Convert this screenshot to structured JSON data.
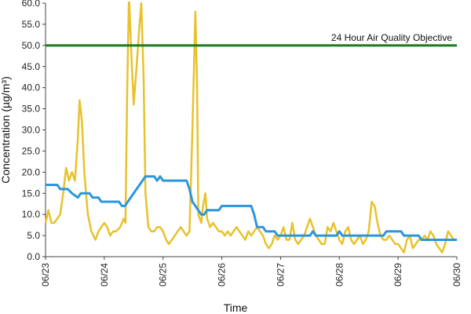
{
  "chart_data": {
    "type": "line",
    "xlabel": "Time",
    "ylabel": "Concentration (µg/m³)",
    "ylim": [
      0,
      60
    ],
    "yticks": [
      "0.0",
      "5.0",
      "10.0",
      "15.0",
      "20.0",
      "25.0",
      "30.0",
      "35.0",
      "40.0",
      "45.0",
      "50.0",
      "55.0",
      "60.0"
    ],
    "x_tick_labels": [
      "06/23",
      "06/24",
      "06/25",
      "06/26",
      "06/27",
      "06/28",
      "06/29",
      "06/30"
    ],
    "grid": false,
    "colors": {
      "hourly": "#e8c22a",
      "rolling": "#2c96dc",
      "objective": "#1f7a1f"
    },
    "objective": {
      "value": 50,
      "label": "24 Hour Air Quality Objective"
    },
    "series": [
      {
        "values": [
          [
            0,
            8
          ],
          [
            0.05,
            11
          ],
          [
            0.1,
            8
          ],
          [
            0.15,
            8
          ],
          [
            0.25,
            10
          ],
          [
            0.3,
            15
          ],
          [
            0.35,
            21
          ],
          [
            0.4,
            18
          ],
          [
            0.45,
            20
          ],
          [
            0.5,
            18
          ],
          [
            0.55,
            28
          ],
          [
            0.58,
            37
          ],
          [
            0.62,
            32
          ],
          [
            0.66,
            20
          ],
          [
            0.72,
            10
          ],
          [
            0.78,
            6
          ],
          [
            0.85,
            4
          ],
          [
            0.9,
            6
          ],
          [
            0.95,
            7
          ],
          [
            1.0,
            8
          ],
          [
            1.05,
            7
          ],
          [
            1.1,
            5
          ],
          [
            1.15,
            6
          ],
          [
            1.2,
            6
          ],
          [
            1.27,
            7
          ],
          [
            1.33,
            9
          ],
          [
            1.36,
            8
          ],
          [
            1.39,
            40
          ],
          [
            1.42,
            62
          ],
          [
            1.46,
            48
          ],
          [
            1.5,
            36
          ],
          [
            1.55,
            45
          ],
          [
            1.6,
            55
          ],
          [
            1.63,
            60
          ],
          [
            1.67,
            42
          ],
          [
            1.7,
            15
          ],
          [
            1.75,
            7
          ],
          [
            1.8,
            6
          ],
          [
            1.85,
            6
          ],
          [
            1.9,
            7
          ],
          [
            1.95,
            7
          ],
          [
            2.0,
            6
          ],
          [
            2.05,
            4
          ],
          [
            2.1,
            3
          ],
          [
            2.15,
            4
          ],
          [
            2.2,
            5
          ],
          [
            2.25,
            6
          ],
          [
            2.3,
            7
          ],
          [
            2.35,
            6
          ],
          [
            2.4,
            5
          ],
          [
            2.45,
            6
          ],
          [
            2.5,
            30
          ],
          [
            2.55,
            58
          ],
          [
            2.58,
            40
          ],
          [
            2.6,
            10
          ],
          [
            2.65,
            8
          ],
          [
            2.68,
            12
          ],
          [
            2.72,
            15
          ],
          [
            2.75,
            9
          ],
          [
            2.8,
            7
          ],
          [
            2.85,
            8
          ],
          [
            2.9,
            7
          ],
          [
            2.95,
            6
          ],
          [
            3.0,
            6
          ],
          [
            3.05,
            5
          ],
          [
            3.1,
            6
          ],
          [
            3.15,
            5
          ],
          [
            3.2,
            6
          ],
          [
            3.25,
            7
          ],
          [
            3.3,
            6
          ],
          [
            3.35,
            5
          ],
          [
            3.4,
            4
          ],
          [
            3.45,
            6
          ],
          [
            3.5,
            5
          ],
          [
            3.55,
            6
          ],
          [
            3.6,
            7
          ],
          [
            3.65,
            6
          ],
          [
            3.7,
            5
          ],
          [
            3.75,
            3
          ],
          [
            3.8,
            2
          ],
          [
            3.85,
            3
          ],
          [
            3.9,
            5
          ],
          [
            3.95,
            4
          ],
          [
            4.0,
            5
          ],
          [
            4.05,
            7
          ],
          [
            4.1,
            4
          ],
          [
            4.15,
            4
          ],
          [
            4.2,
            8
          ],
          [
            4.25,
            4
          ],
          [
            4.3,
            3
          ],
          [
            4.35,
            4
          ],
          [
            4.4,
            5
          ],
          [
            4.45,
            7
          ],
          [
            4.5,
            9
          ],
          [
            4.55,
            7
          ],
          [
            4.6,
            5
          ],
          [
            4.65,
            4
          ],
          [
            4.7,
            3
          ],
          [
            4.75,
            3
          ],
          [
            4.8,
            7
          ],
          [
            4.85,
            6
          ],
          [
            4.9,
            8
          ],
          [
            4.95,
            6
          ],
          [
            5.0,
            4
          ],
          [
            5.05,
            3
          ],
          [
            5.1,
            6
          ],
          [
            5.15,
            7
          ],
          [
            5.2,
            4
          ],
          [
            5.25,
            3
          ],
          [
            5.3,
            4
          ],
          [
            5.35,
            5
          ],
          [
            5.4,
            3
          ],
          [
            5.45,
            4
          ],
          [
            5.5,
            6
          ],
          [
            5.55,
            13
          ],
          [
            5.6,
            12
          ],
          [
            5.65,
            8
          ],
          [
            5.7,
            5
          ],
          [
            5.75,
            4
          ],
          [
            5.8,
            4
          ],
          [
            5.85,
            5
          ],
          [
            5.9,
            4
          ],
          [
            5.95,
            3
          ],
          [
            6.0,
            3
          ],
          [
            6.05,
            2
          ],
          [
            6.1,
            1
          ],
          [
            6.15,
            4
          ],
          [
            6.2,
            5
          ],
          [
            6.25,
            2
          ],
          [
            6.3,
            3
          ],
          [
            6.35,
            4
          ],
          [
            6.4,
            4
          ],
          [
            6.45,
            5
          ],
          [
            6.5,
            4
          ],
          [
            6.55,
            6
          ],
          [
            6.6,
            5
          ],
          [
            6.65,
            3
          ],
          [
            6.7,
            2
          ],
          [
            6.75,
            1
          ],
          [
            6.8,
            3
          ],
          [
            6.85,
            6
          ],
          [
            6.9,
            5
          ],
          [
            6.95,
            4
          ]
        ]
      },
      {
        "values": [
          [
            0,
            17
          ],
          [
            0.2,
            17
          ],
          [
            0.25,
            16
          ],
          [
            0.38,
            16
          ],
          [
            0.45,
            15
          ],
          [
            0.55,
            14
          ],
          [
            0.6,
            15
          ],
          [
            0.75,
            15
          ],
          [
            0.8,
            14
          ],
          [
            0.9,
            14
          ],
          [
            0.95,
            13
          ],
          [
            1.1,
            13
          ],
          [
            1.15,
            13
          ],
          [
            1.25,
            13
          ],
          [
            1.3,
            12
          ],
          [
            1.35,
            12
          ],
          [
            1.45,
            14
          ],
          [
            1.55,
            16
          ],
          [
            1.6,
            17
          ],
          [
            1.65,
            18
          ],
          [
            1.7,
            19
          ],
          [
            1.85,
            19
          ],
          [
            1.9,
            18
          ],
          [
            1.95,
            19
          ],
          [
            2.0,
            18
          ],
          [
            2.1,
            18
          ],
          [
            2.4,
            18
          ],
          [
            2.45,
            16
          ],
          [
            2.5,
            13
          ],
          [
            2.55,
            12
          ],
          [
            2.6,
            11
          ],
          [
            2.65,
            10
          ],
          [
            2.7,
            10
          ],
          [
            2.75,
            11
          ],
          [
            2.95,
            11
          ],
          [
            3.0,
            12
          ],
          [
            3.5,
            12
          ],
          [
            3.55,
            10
          ],
          [
            3.6,
            7
          ],
          [
            3.7,
            7
          ],
          [
            3.75,
            6
          ],
          [
            3.9,
            6
          ],
          [
            3.95,
            5
          ],
          [
            4.5,
            5
          ],
          [
            4.55,
            6
          ],
          [
            4.6,
            5
          ],
          [
            4.95,
            5
          ],
          [
            5.0,
            6
          ],
          [
            5.05,
            5
          ],
          [
            5.75,
            5
          ],
          [
            5.8,
            6
          ],
          [
            6.05,
            6
          ],
          [
            6.1,
            5
          ],
          [
            6.35,
            5
          ],
          [
            6.4,
            4
          ],
          [
            7.0,
            4
          ]
        ]
      }
    ]
  }
}
